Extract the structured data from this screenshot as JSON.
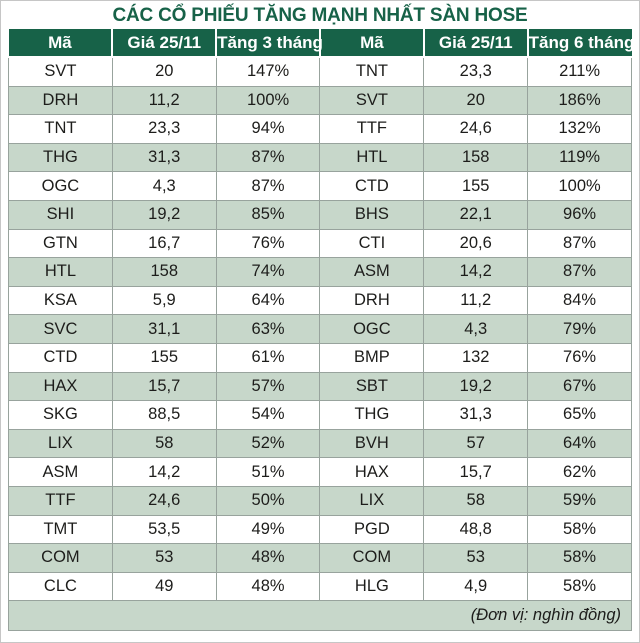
{
  "title": "CÁC CỔ PHIẾU TĂNG MẠNH NHẤT SÀN HOSE",
  "unit_note": "(Đơn vị: nghìn đồng)",
  "colors": {
    "header_bg": "#176248",
    "title_text": "#176248",
    "row_alt_bg": "#c7d7ca",
    "cell_border": "#98a39d",
    "text": "#1d1d1b"
  },
  "chart_data": [
    {
      "type": "table",
      "title": "CÁC CỔ PHIẾU TĂNG MẠNH NHẤT SÀN HOSE",
      "subtitle": "(Đơn vị: nghìn đồng)",
      "columns": [
        "Mã",
        "Giá 25/11",
        "Tăng 3 tháng"
      ],
      "rows": [
        [
          "SVT",
          "20",
          "147%"
        ],
        [
          "DRH",
          "11,2",
          "100%"
        ],
        [
          "TNT",
          "23,3",
          "94%"
        ],
        [
          "THG",
          "31,3",
          "87%"
        ],
        [
          "OGC",
          "4,3",
          "87%"
        ],
        [
          "SHI",
          "19,2",
          "85%"
        ],
        [
          "GTN",
          "16,7",
          "76%"
        ],
        [
          "HTL",
          "158",
          "74%"
        ],
        [
          "KSA",
          "5,9",
          "64%"
        ],
        [
          "SVC",
          "31,1",
          "63%"
        ],
        [
          "CTD",
          "155",
          "61%"
        ],
        [
          "HAX",
          "15,7",
          "57%"
        ],
        [
          "SKG",
          "88,5",
          "54%"
        ],
        [
          "LIX",
          "58",
          "52%"
        ],
        [
          "ASM",
          "14,2",
          "51%"
        ],
        [
          "TTF",
          "24,6",
          "50%"
        ],
        [
          "TMT",
          "53,5",
          "49%"
        ],
        [
          "COM",
          "53",
          "48%"
        ],
        [
          "CLC",
          "49",
          "48%"
        ]
      ]
    },
    {
      "type": "table",
      "title": "CÁC CỔ PHIẾU TĂNG MẠNH NHẤT SÀN HOSE",
      "subtitle": "(Đơn vị: nghìn đồng)",
      "columns": [
        "Mã",
        "Giá 25/11",
        "Tăng 6 tháng"
      ],
      "rows": [
        [
          "TNT",
          "23,3",
          "211%"
        ],
        [
          "SVT",
          "20",
          "186%"
        ],
        [
          "TTF",
          "24,6",
          "132%"
        ],
        [
          "HTL",
          "158",
          "119%"
        ],
        [
          "CTD",
          "155",
          "100%"
        ],
        [
          "BHS",
          "22,1",
          "96%"
        ],
        [
          "CTI",
          "20,6",
          "87%"
        ],
        [
          "ASM",
          "14,2",
          "87%"
        ],
        [
          "DRH",
          "11,2",
          "84%"
        ],
        [
          "OGC",
          "4,3",
          "79%"
        ],
        [
          "BMP",
          "132",
          "76%"
        ],
        [
          "SBT",
          "19,2",
          "67%"
        ],
        [
          "THG",
          "31,3",
          "65%"
        ],
        [
          "BVH",
          "57",
          "64%"
        ],
        [
          "HAX",
          "15,7",
          "62%"
        ],
        [
          "LIX",
          "58",
          "59%"
        ],
        [
          "PGD",
          "48,8",
          "58%"
        ],
        [
          "COM",
          "53",
          "58%"
        ],
        [
          "HLG",
          "4,9",
          "58%"
        ]
      ]
    }
  ]
}
